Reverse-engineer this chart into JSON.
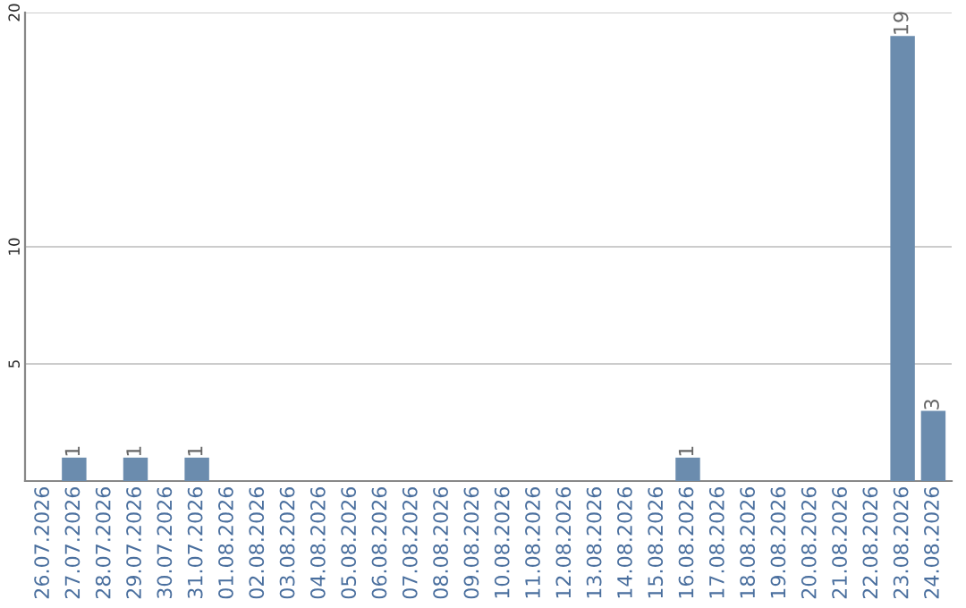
{
  "chart_data": {
    "type": "bar",
    "categories": [
      "26.07.2026",
      "27.07.2026",
      "28.07.2026",
      "29.07.2026",
      "30.07.2026",
      "31.07.2026",
      "01.08.2026",
      "02.08.2026",
      "03.08.2026",
      "04.08.2026",
      "05.08.2026",
      "06.08.2026",
      "07.08.2026",
      "08.08.2026",
      "09.08.2026",
      "10.08.2026",
      "11.08.2026",
      "12.08.2026",
      "13.08.2026",
      "14.08.2026",
      "15.08.2026",
      "16.08.2026",
      "17.08.2026",
      "18.08.2026",
      "19.08.2026",
      "20.08.2026",
      "21.08.2026",
      "22.08.2026",
      "23.08.2026",
      "24.08.2026"
    ],
    "values": [
      0,
      1,
      0,
      1,
      0,
      1,
      0,
      0,
      0,
      0,
      0,
      0,
      0,
      0,
      0,
      0,
      0,
      0,
      0,
      0,
      0,
      1,
      0,
      0,
      0,
      0,
      0,
      0,
      19,
      3
    ],
    "value_labels": [
      null,
      "1",
      null,
      "1",
      null,
      "1",
      null,
      null,
      null,
      null,
      null,
      null,
      null,
      null,
      null,
      null,
      null,
      null,
      null,
      null,
      null,
      "1",
      null,
      null,
      null,
      null,
      null,
      null,
      "19",
      "3"
    ],
    "color": "#6b8cae",
    "ylim": [
      0,
      20
    ],
    "yticks": [
      5,
      10,
      20
    ],
    "grid": "y"
  }
}
